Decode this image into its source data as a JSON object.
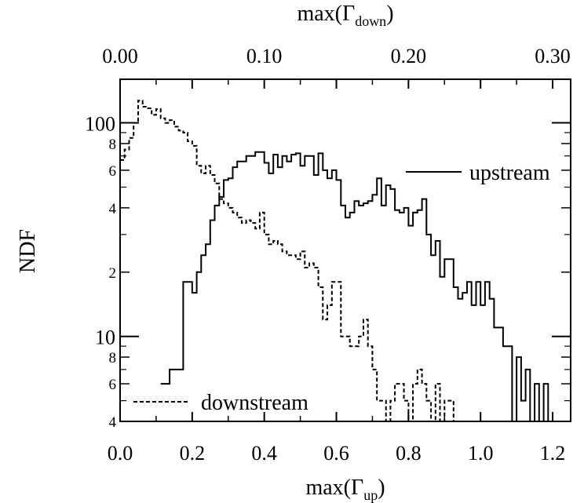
{
  "chart_data": {
    "type": "line",
    "xlabel_bottom": {
      "base": "max(Γ",
      "sub": "up",
      "close": ")"
    },
    "xlabel_top": {
      "base": "max(Γ",
      "sub": "down",
      "close": ")"
    },
    "ylabel": "NDF",
    "y_scale": "log",
    "ylim": [
      4,
      160
    ],
    "xlim_bottom": [
      0,
      1.25
    ],
    "xlim_top": [
      0,
      0.3125
    ],
    "x_ticks_bottom": [
      "0.0",
      "0.2",
      "0.4",
      "0.6",
      "0.8",
      "1.0",
      "1.2"
    ],
    "x_ticks_top": [
      "0.00",
      "0.10",
      "0.20",
      "0.30"
    ],
    "y_major_ticks": [
      {
        "value": 10,
        "label": "10"
      },
      {
        "value": 100,
        "label": "100"
      }
    ],
    "y_minor_ticks": [
      {
        "value": 4,
        "label": "4"
      },
      {
        "value": 6,
        "label": "6"
      },
      {
        "value": 8,
        "label": "8"
      },
      {
        "value": 20,
        "label": "2"
      },
      {
        "value": 40,
        "label": "4"
      },
      {
        "value": 60,
        "label": "6"
      },
      {
        "value": 80,
        "label": "8"
      }
    ],
    "bin_width": 0.0125,
    "series": [
      {
        "name": "upstream",
        "axis": "bottom",
        "style": "solid",
        "x_start": 0.1125,
        "values": [
          6,
          6,
          7,
          7,
          7,
          18,
          18,
          16,
          20,
          24,
          27,
          35,
          41,
          45,
          54,
          55,
          62,
          66,
          66,
          70,
          70,
          73,
          73,
          65,
          58,
          71,
          62,
          70,
          66,
          71,
          72,
          63,
          70,
          70,
          57,
          72,
          60,
          55,
          60,
          54,
          41,
          36,
          38,
          43,
          41,
          42,
          43,
          46,
          55,
          41,
          51,
          49,
          39,
          38,
          40,
          33,
          38,
          39,
          44,
          30,
          24,
          28,
          19,
          23,
          23,
          17,
          15,
          16,
          18,
          14,
          18,
          14,
          18,
          15,
          11,
          11,
          9,
          9,
          4,
          8,
          5,
          7,
          4,
          6,
          4,
          6,
          4
        ]
      },
      {
        "name": "downstream",
        "axis": "bottom",
        "style": "dashed",
        "x_start": 0.0,
        "values": [
          67,
          75,
          85,
          100,
          127,
          119,
          117,
          109,
          116,
          105,
          100,
          103,
          96,
          92,
          90,
          82,
          78,
          63,
          58,
          63,
          57,
          52,
          44,
          42,
          40,
          38,
          36,
          34,
          35,
          34,
          32,
          38,
          30,
          27,
          28,
          27,
          25,
          24,
          24,
          23,
          25,
          21,
          22,
          21,
          17,
          12,
          14,
          18,
          18,
          10,
          10,
          9,
          9,
          10,
          12,
          9,
          7,
          5,
          5,
          4,
          5,
          6,
          6,
          5,
          4,
          6,
          7,
          6,
          5,
          4,
          6,
          4,
          5,
          5,
          4
        ]
      }
    ]
  },
  "legend": {
    "upstream_label": "upstream",
    "downstream_label": "downstream"
  }
}
